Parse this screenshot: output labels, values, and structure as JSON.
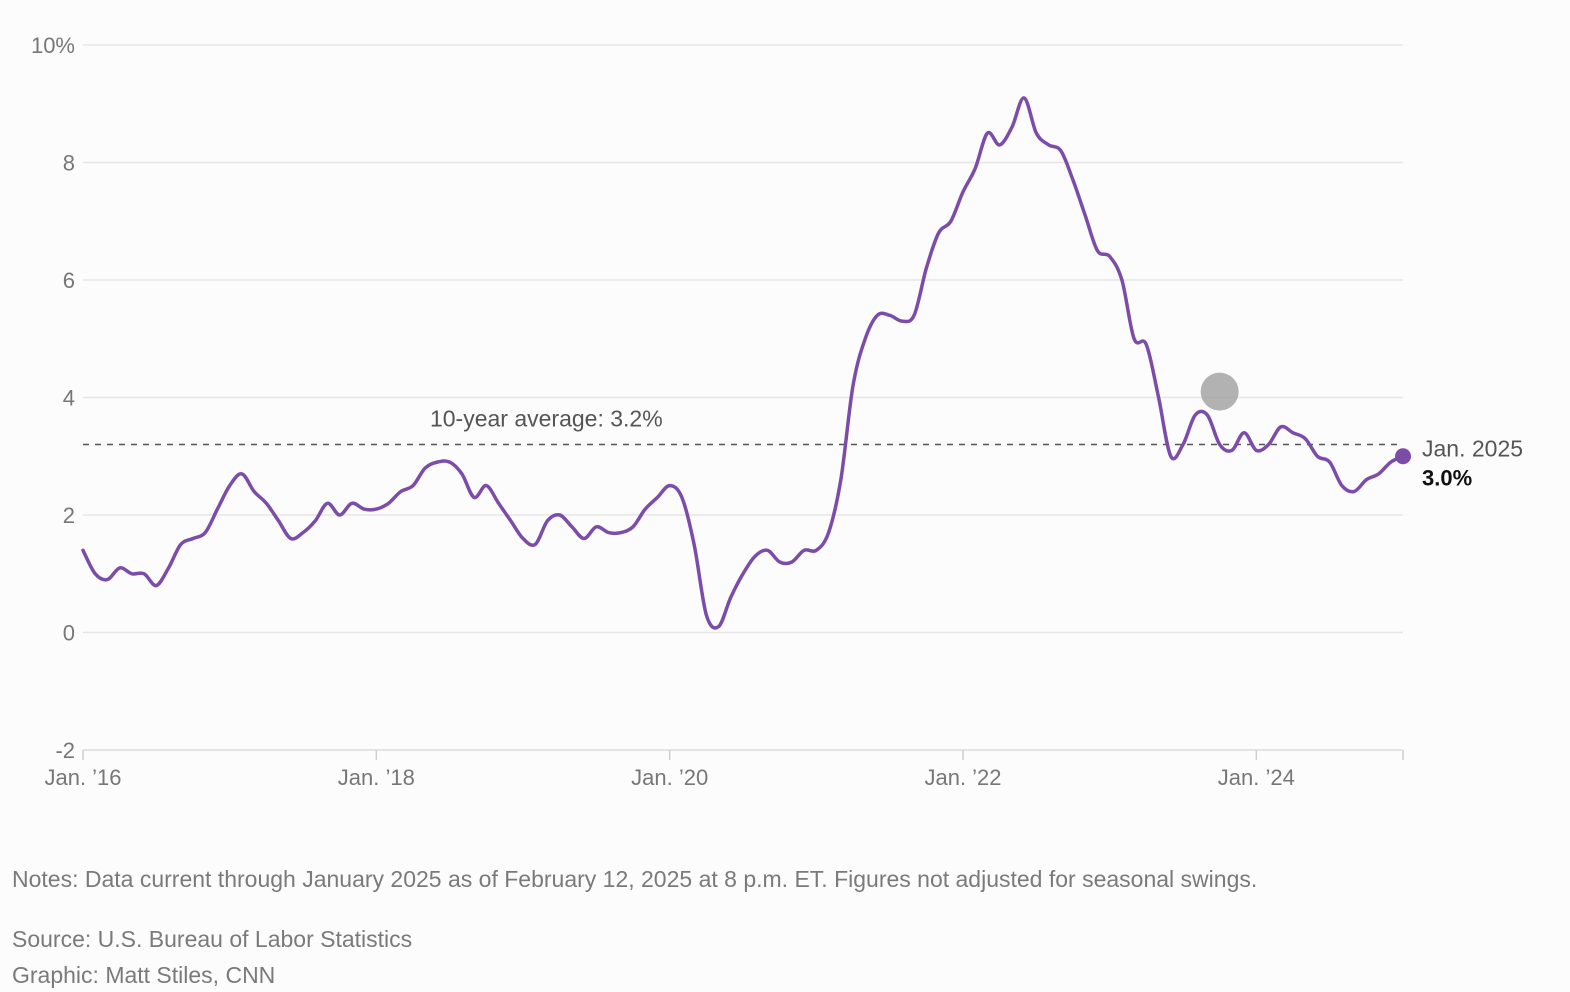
{
  "chart_data": {
    "type": "line",
    "ylim": [
      -2,
      10
    ],
    "y_ticks": [
      {
        "value": 10,
        "label": "10%"
      },
      {
        "value": 8,
        "label": "8"
      },
      {
        "value": 6,
        "label": "6"
      },
      {
        "value": 4,
        "label": "4"
      },
      {
        "value": 2,
        "label": "2"
      },
      {
        "value": 0,
        "label": "0"
      },
      {
        "value": -2,
        "label": "-2"
      }
    ],
    "x_ticks": [
      {
        "value": "2016-01",
        "label": "Jan. ’16"
      },
      {
        "value": "2018-01",
        "label": "Jan. ’18"
      },
      {
        "value": "2020-01",
        "label": "Jan. ’20"
      },
      {
        "value": "2022-01",
        "label": "Jan. ’22"
      },
      {
        "value": "2024-01",
        "label": "Jan. ’24"
      },
      {
        "value": "2025-01",
        "label": ""
      }
    ],
    "grid": true,
    "line_color": "#7b4ca8",
    "reference_line": {
      "value": 3.2,
      "label": "10-year average: 3.2%"
    },
    "end_label": {
      "date": "Jan. 2025",
      "value": "3.0%"
    },
    "series": [
      {
        "x": [
          "2016-01",
          "2016-02",
          "2016-03",
          "2016-04",
          "2016-05",
          "2016-06",
          "2016-07",
          "2016-08",
          "2016-09",
          "2016-10",
          "2016-11",
          "2016-12",
          "2017-01",
          "2017-02",
          "2017-03",
          "2017-04",
          "2017-05",
          "2017-06",
          "2017-07",
          "2017-08",
          "2017-09",
          "2017-10",
          "2017-11",
          "2017-12",
          "2018-01",
          "2018-02",
          "2018-03",
          "2018-04",
          "2018-05",
          "2018-06",
          "2018-07",
          "2018-08",
          "2018-09",
          "2018-10",
          "2018-11",
          "2018-12",
          "2019-01",
          "2019-02",
          "2019-03",
          "2019-04",
          "2019-05",
          "2019-06",
          "2019-07",
          "2019-08",
          "2019-09",
          "2019-10",
          "2019-11",
          "2019-12",
          "2020-01",
          "2020-02",
          "2020-03",
          "2020-04",
          "2020-05",
          "2020-06",
          "2020-07",
          "2020-08",
          "2020-09",
          "2020-10",
          "2020-11",
          "2020-12",
          "2021-01",
          "2021-02",
          "2021-03",
          "2021-04",
          "2021-05",
          "2021-06",
          "2021-07",
          "2021-08",
          "2021-09",
          "2021-10",
          "2021-11",
          "2021-12",
          "2022-01",
          "2022-02",
          "2022-03",
          "2022-04",
          "2022-05",
          "2022-06",
          "2022-07",
          "2022-08",
          "2022-09",
          "2022-10",
          "2022-11",
          "2022-12",
          "2023-01",
          "2023-02",
          "2023-03",
          "2023-04",
          "2023-05",
          "2023-06",
          "2023-07",
          "2023-08",
          "2023-09",
          "2023-10",
          "2023-11",
          "2023-12",
          "2024-01",
          "2024-02",
          "2024-03",
          "2024-04",
          "2024-05",
          "2024-06",
          "2024-07",
          "2024-08",
          "2024-09",
          "2024-10",
          "2024-11",
          "2024-12",
          "2025-01"
        ],
        "values": [
          1.4,
          1.0,
          0.9,
          1.1,
          1.0,
          1.0,
          0.8,
          1.1,
          1.5,
          1.6,
          1.7,
          2.1,
          2.5,
          2.7,
          2.4,
          2.2,
          1.9,
          1.6,
          1.7,
          1.9,
          2.2,
          2.0,
          2.2,
          2.1,
          2.1,
          2.2,
          2.4,
          2.5,
          2.8,
          2.9,
          2.9,
          2.7,
          2.3,
          2.5,
          2.2,
          1.9,
          1.6,
          1.5,
          1.9,
          2.0,
          1.8,
          1.6,
          1.8,
          1.7,
          1.7,
          1.8,
          2.1,
          2.3,
          2.5,
          2.3,
          1.5,
          0.3,
          0.1,
          0.6,
          1.0,
          1.3,
          1.4,
          1.2,
          1.2,
          1.4,
          1.4,
          1.7,
          2.6,
          4.2,
          5.0,
          5.4,
          5.4,
          5.3,
          5.4,
          6.2,
          6.8,
          7.0,
          7.5,
          7.9,
          8.5,
          8.3,
          8.6,
          9.1,
          8.5,
          8.3,
          8.2,
          7.7,
          7.1,
          6.5,
          6.4,
          6.0,
          5.0,
          4.9,
          4.0,
          3.0,
          3.2,
          3.7,
          3.7,
          3.2,
          3.1,
          3.4,
          3.1,
          3.2,
          3.5,
          3.4,
          3.3,
          3.0,
          2.9,
          2.5,
          2.4,
          2.6,
          2.7,
          2.9,
          3.0
        ]
      }
    ]
  },
  "notes": "Notes: Data current through January 2025 as of February 12, 2025 at 8 p.m. ET. Figures not adjusted for seasonal swings.",
  "source": "Source: U.S. Bureau of Labor Statistics",
  "graphic": "Graphic: Matt Stiles, CNN"
}
